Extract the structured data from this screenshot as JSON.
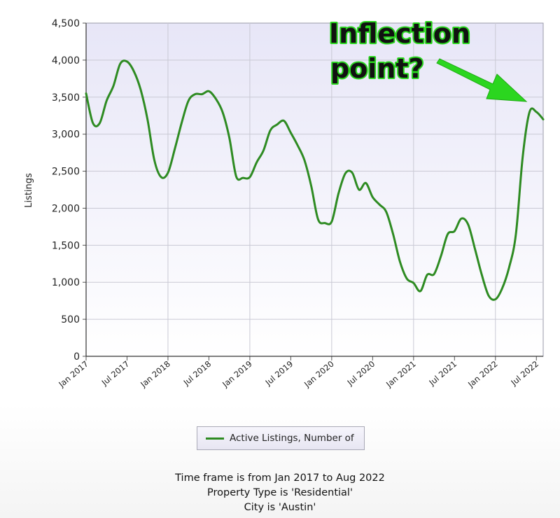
{
  "chart_data": {
    "type": "line",
    "ylabel": "Listings",
    "ylim": [
      0,
      4500
    ],
    "yticks": [
      "0",
      "500",
      "1,000",
      "1,500",
      "2,000",
      "2,500",
      "3,000",
      "3,500",
      "4,000",
      "4,500"
    ],
    "xticks": [
      "Jan 2017",
      "Jul 2017",
      "Jan 2018",
      "Jul 2018",
      "Jan 2019",
      "Jul 2019",
      "Jan 2020",
      "Jul 2020",
      "Jan 2021",
      "Jul 2021",
      "Jan 2022",
      "Jul 2022"
    ],
    "x_range": [
      "2017-01",
      "2022-08"
    ],
    "grid": true,
    "legend_position": "bottom-center",
    "series": [
      {
        "name": "Active Listings, Number of",
        "color": "#2e8b22",
        "points": [
          [
            "2017-01",
            3550
          ],
          [
            "2017-02",
            3150
          ],
          [
            "2017-03",
            3150
          ],
          [
            "2017-04",
            3450
          ],
          [
            "2017-05",
            3650
          ],
          [
            "2017-06",
            3950
          ],
          [
            "2017-07",
            3980
          ],
          [
            "2017-08",
            3850
          ],
          [
            "2017-09",
            3600
          ],
          [
            "2017-10",
            3200
          ],
          [
            "2017-11",
            2650
          ],
          [
            "2017-12",
            2420
          ],
          [
            "2018-01",
            2480
          ],
          [
            "2018-02",
            2800
          ],
          [
            "2018-03",
            3150
          ],
          [
            "2018-04",
            3450
          ],
          [
            "2018-05",
            3540
          ],
          [
            "2018-06",
            3540
          ],
          [
            "2018-07",
            3580
          ],
          [
            "2018-08",
            3480
          ],
          [
            "2018-09",
            3300
          ],
          [
            "2018-10",
            2950
          ],
          [
            "2018-11",
            2430
          ],
          [
            "2018-12",
            2410
          ],
          [
            "2019-01",
            2420
          ],
          [
            "2019-02",
            2620
          ],
          [
            "2019-03",
            2780
          ],
          [
            "2019-04",
            3050
          ],
          [
            "2019-05",
            3130
          ],
          [
            "2019-06",
            3180
          ],
          [
            "2019-07",
            3020
          ],
          [
            "2019-08",
            2850
          ],
          [
            "2019-09",
            2650
          ],
          [
            "2019-10",
            2300
          ],
          [
            "2019-11",
            1850
          ],
          [
            "2019-12",
            1800
          ],
          [
            "2020-01",
            1820
          ],
          [
            "2020-02",
            2200
          ],
          [
            "2020-03",
            2470
          ],
          [
            "2020-04",
            2480
          ],
          [
            "2020-05",
            2250
          ],
          [
            "2020-06",
            2340
          ],
          [
            "2020-07",
            2150
          ],
          [
            "2020-08",
            2050
          ],
          [
            "2020-09",
            1950
          ],
          [
            "2020-10",
            1650
          ],
          [
            "2020-11",
            1280
          ],
          [
            "2020-12",
            1050
          ],
          [
            "2021-01",
            990
          ],
          [
            "2021-02",
            880
          ],
          [
            "2021-03",
            1100
          ],
          [
            "2021-04",
            1110
          ],
          [
            "2021-05",
            1350
          ],
          [
            "2021-06",
            1650
          ],
          [
            "2021-07",
            1690
          ],
          [
            "2021-08",
            1860
          ],
          [
            "2021-09",
            1780
          ],
          [
            "2021-10",
            1450
          ],
          [
            "2021-11",
            1100
          ],
          [
            "2021-12",
            820
          ],
          [
            "2022-01",
            770
          ],
          [
            "2022-02",
            920
          ],
          [
            "2022-03",
            1200
          ],
          [
            "2022-04",
            1650
          ],
          [
            "2022-05",
            2700
          ],
          [
            "2022-06",
            3300
          ],
          [
            "2022-07",
            3300
          ],
          [
            "2022-08",
            3200
          ]
        ]
      }
    ]
  },
  "annotation": {
    "text_line1": "Inflection",
    "text_line2": "point?",
    "arrow_color": "#2bd61f"
  },
  "legend": {
    "label": "Active Listings, Number of",
    "color": "#2e8b22"
  },
  "caption": {
    "line1": "Time frame is from Jan 2017 to Aug 2022",
    "line2": "Property Type is 'Residential'",
    "line3": "City is 'Austin'"
  }
}
